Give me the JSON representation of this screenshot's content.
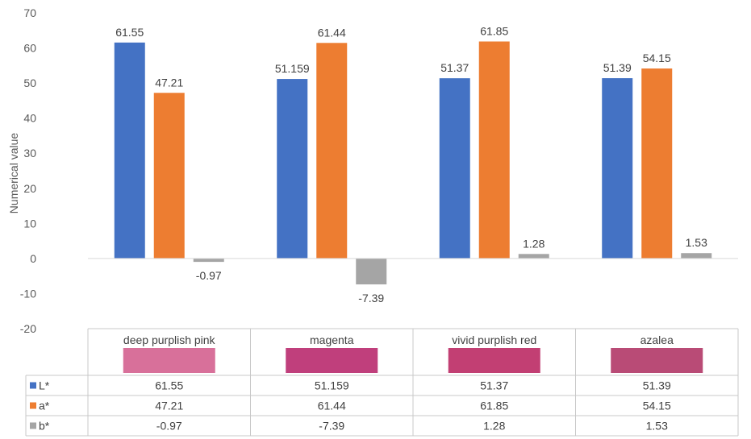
{
  "chart_data": {
    "type": "bar",
    "title": "",
    "xlabel": "",
    "ylabel": "Numerical value",
    "ylim": [
      -20,
      70
    ],
    "yticks": [
      -20,
      -10,
      0,
      10,
      20,
      30,
      40,
      50,
      60,
      70
    ],
    "grid": false,
    "legend": "data-table",
    "categories": [
      "deep purplish pink",
      "magenta",
      "vivid purplish red",
      "azalea"
    ],
    "category_swatch_colors": [
      "#d8709a",
      "#c03f7c",
      "#c23f73",
      "#b94b76"
    ],
    "series": [
      {
        "name": "L*",
        "color": "#4472c4",
        "values": [
          61.55,
          51.159,
          51.37,
          51.39
        ],
        "labels": [
          "61.55",
          "51.159",
          "51.37",
          "51.39"
        ]
      },
      {
        "name": "a*",
        "color": "#ed7d31",
        "values": [
          47.21,
          61.44,
          61.85,
          54.15
        ],
        "labels": [
          "47.21",
          "61.44",
          "61.85",
          "54.15"
        ]
      },
      {
        "name": "b*",
        "color": "#a5a5a5",
        "values": [
          -0.97,
          -7.39,
          1.28,
          1.53
        ],
        "labels": [
          "-0.97",
          "-7.39",
          "1.28",
          "1.53"
        ]
      }
    ]
  }
}
